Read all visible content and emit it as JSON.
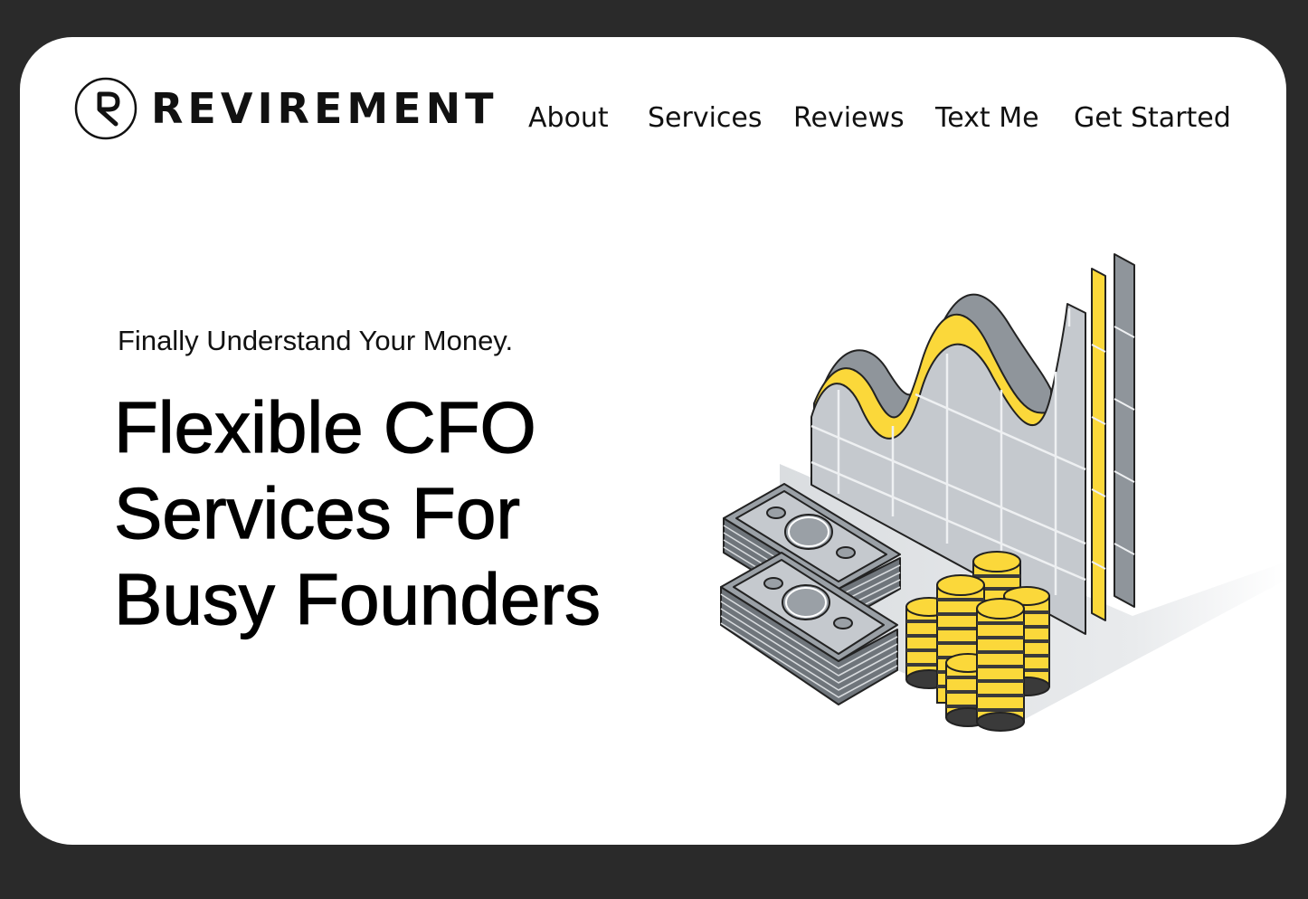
{
  "brand": {
    "name": "REVIREMENT",
    "logo_icon": "r-circle-logo-icon"
  },
  "nav": {
    "items": [
      {
        "label": "About"
      },
      {
        "label": "Services"
      },
      {
        "label": "Reviews"
      },
      {
        "label": "Text Me"
      },
      {
        "label": "Get Started"
      }
    ]
  },
  "hero": {
    "tagline": "Finally Understand Your Money.",
    "headline_lines": [
      "Flexible CFO",
      "Services For",
      "Busy Founders"
    ],
    "illustration_icon": "finance-chart-money-illustration"
  },
  "colors": {
    "background": "#2a2a2a",
    "card": "#ffffff",
    "accent_yellow": "#fbd83a",
    "gray": "#a8adb3",
    "text": "#111111"
  }
}
